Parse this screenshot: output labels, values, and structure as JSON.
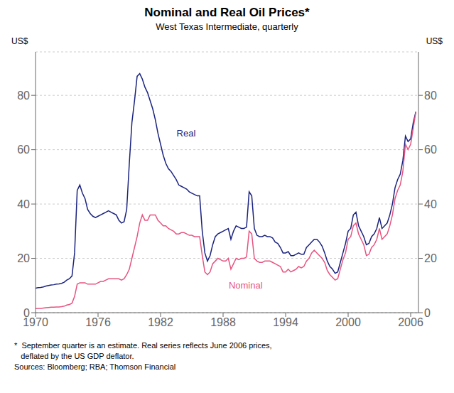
{
  "chart_data": {
    "type": "line",
    "title": "Nominal and Real Oil Prices*",
    "subtitle": "West Texas Intermediate, quarterly",
    "ylabel": "US$",
    "y2label": "US$",
    "footnotes": [
      "*  September quarter is an estimate. Real series reflects June 2006 prices,",
      "   deflated by the US GDP deflator.",
      "Sources: Bloomberg; RBA; Thomson Financial"
    ],
    "xlim": [
      1970,
      2006.75
    ],
    "xticks": [
      1970,
      1976,
      1982,
      1988,
      1994,
      2000,
      2006
    ],
    "ylim": [
      0,
      96
    ],
    "yticks": [
      0,
      20,
      40,
      60,
      80
    ],
    "y2lim": [
      0,
      96
    ],
    "y2ticks": [
      0,
      20,
      40,
      60,
      80
    ],
    "grid": true,
    "annotations": [
      {
        "text": "Real",
        "x": 1983.2,
        "y": 66,
        "color": "#1a237e"
      },
      {
        "text": "Nominal",
        "x": 1988.2,
        "y": 10.0,
        "color": "#e75480"
      }
    ],
    "x": [
      1970.0,
      1970.25,
      1970.5,
      1970.75,
      1971.0,
      1971.25,
      1971.5,
      1971.75,
      1972.0,
      1972.25,
      1972.5,
      1972.75,
      1973.0,
      1973.25,
      1973.5,
      1973.75,
      1974.0,
      1974.25,
      1974.5,
      1974.75,
      1975.0,
      1975.25,
      1975.5,
      1975.75,
      1976.0,
      1976.25,
      1976.5,
      1976.75,
      1977.0,
      1977.25,
      1977.5,
      1977.75,
      1978.0,
      1978.25,
      1978.5,
      1978.75,
      1979.0,
      1979.25,
      1979.5,
      1979.75,
      1980.0,
      1980.25,
      1980.5,
      1980.75,
      1981.0,
      1981.25,
      1981.5,
      1981.75,
      1982.0,
      1982.25,
      1982.5,
      1982.75,
      1983.0,
      1983.25,
      1983.5,
      1983.75,
      1984.0,
      1984.25,
      1984.5,
      1984.75,
      1985.0,
      1985.25,
      1985.5,
      1985.75,
      1986.0,
      1986.25,
      1986.5,
      1986.75,
      1987.0,
      1987.25,
      1987.5,
      1987.75,
      1988.0,
      1988.25,
      1988.5,
      1988.75,
      1989.0,
      1989.25,
      1989.5,
      1989.75,
      1990.0,
      1990.25,
      1990.5,
      1990.75,
      1991.0,
      1991.25,
      1991.5,
      1991.75,
      1992.0,
      1992.25,
      1992.5,
      1992.75,
      1993.0,
      1993.25,
      1993.5,
      1993.75,
      1994.0,
      1994.25,
      1994.5,
      1994.75,
      1995.0,
      1995.25,
      1995.5,
      1995.75,
      1996.0,
      1996.25,
      1996.5,
      1996.75,
      1997.0,
      1997.25,
      1997.5,
      1997.75,
      1998.0,
      1998.25,
      1998.5,
      1998.75,
      1999.0,
      1999.25,
      1999.5,
      1999.75,
      2000.0,
      2000.25,
      2000.5,
      2000.75,
      2001.0,
      2001.25,
      2001.5,
      2001.75,
      2002.0,
      2002.25,
      2002.5,
      2002.75,
      2003.0,
      2003.25,
      2003.5,
      2003.75,
      2004.0,
      2004.25,
      2004.5,
      2004.75,
      2005.0,
      2005.25,
      2005.5,
      2005.75,
      2006.0,
      2006.25,
      2006.5
    ],
    "series": [
      {
        "name": "Real",
        "color": "#1a237e",
        "values": [
          9.0,
          9.2,
          9.3,
          9.5,
          9.8,
          10.0,
          10.2,
          10.3,
          10.5,
          10.6,
          10.8,
          11.2,
          12.0,
          12.5,
          13.5,
          22.0,
          45.0,
          47.0,
          44.0,
          42.0,
          38.0,
          36.5,
          35.5,
          35.0,
          35.5,
          36.0,
          36.5,
          37.0,
          37.5,
          37.0,
          36.5,
          36.0,
          34.0,
          33.0,
          33.5,
          38.0,
          55.0,
          70.0,
          78.0,
          87.0,
          88.0,
          86.0,
          83.0,
          81.0,
          78.0,
          75.0,
          71.0,
          66.0,
          62.0,
          58.0,
          55.0,
          53.0,
          52.0,
          50.5,
          49.0,
          47.0,
          46.5,
          46.0,
          45.5,
          44.5,
          44.0,
          43.5,
          43.0,
          43.0,
          30.0,
          22.0,
          19.0,
          21.0,
          25.0,
          28.0,
          29.0,
          29.5,
          30.0,
          30.5,
          31.0,
          27.0,
          30.0,
          32.0,
          31.5,
          31.0,
          31.0,
          31.5,
          44.5,
          43.0,
          31.0,
          28.5,
          28.0,
          28.0,
          28.5,
          28.0,
          28.0,
          27.5,
          26.0,
          25.5,
          24.0,
          22.0,
          22.0,
          22.5,
          21.0,
          21.0,
          21.5,
          22.0,
          21.5,
          21.5,
          24.0,
          25.0,
          26.0,
          27.0,
          27.0,
          26.0,
          24.5,
          22.0,
          19.0,
          17.0,
          16.0,
          14.5,
          15.0,
          18.5,
          22.0,
          25.5,
          30.0,
          31.0,
          36.0,
          37.0,
          32.0,
          30.0,
          28.0,
          25.0,
          25.5,
          28.0,
          29.0,
          31.0,
          35.0,
          31.0,
          32.0,
          33.0,
          36.0,
          40.0,
          46.0,
          49.0,
          51.0,
          56.0,
          65.0,
          63.0,
          64.0,
          70.0,
          74.0
        ]
      },
      {
        "name": "Nominal",
        "color": "#e75480",
        "values": [
          1.5,
          1.6,
          1.6,
          1.7,
          1.8,
          1.9,
          2.0,
          2.0,
          2.1,
          2.1,
          2.2,
          2.4,
          2.8,
          3.0,
          3.5,
          6.0,
          10.5,
          11.0,
          11.0,
          11.0,
          10.5,
          10.5,
          10.5,
          10.5,
          11.0,
          11.5,
          11.5,
          12.0,
          12.5,
          12.5,
          12.5,
          12.5,
          12.5,
          12.0,
          12.5,
          14.0,
          16.0,
          20.0,
          24.0,
          28.0,
          33.0,
          36.0,
          34.0,
          34.0,
          36.0,
          36.0,
          36.0,
          34.0,
          33.0,
          32.0,
          32.0,
          31.0,
          30.5,
          30.0,
          29.0,
          29.0,
          29.5,
          29.5,
          29.0,
          28.5,
          28.5,
          28.0,
          28.0,
          28.0,
          21.0,
          15.0,
          14.0,
          15.0,
          18.0,
          19.0,
          20.0,
          19.5,
          19.0,
          19.0,
          20.0,
          16.0,
          18.0,
          20.0,
          19.5,
          20.0,
          20.0,
          20.5,
          30.0,
          29.0,
          20.0,
          19.0,
          18.5,
          18.5,
          19.0,
          19.0,
          19.0,
          18.5,
          18.0,
          17.5,
          17.0,
          15.0,
          15.0,
          16.0,
          15.0,
          15.5,
          16.0,
          17.0,
          16.5,
          17.0,
          19.0,
          20.0,
          22.0,
          23.0,
          22.0,
          21.0,
          20.0,
          18.5,
          15.5,
          14.0,
          13.0,
          12.0,
          12.5,
          16.0,
          19.5,
          22.0,
          27.0,
          28.0,
          32.0,
          33.0,
          29.0,
          27.0,
          25.0,
          21.0,
          21.5,
          24.0,
          25.0,
          27.0,
          31.0,
          27.0,
          28.0,
          29.0,
          32.0,
          36.0,
          42.0,
          45.0,
          47.0,
          52.0,
          62.0,
          60.0,
          62.0,
          68.0,
          74.0
        ]
      }
    ]
  }
}
